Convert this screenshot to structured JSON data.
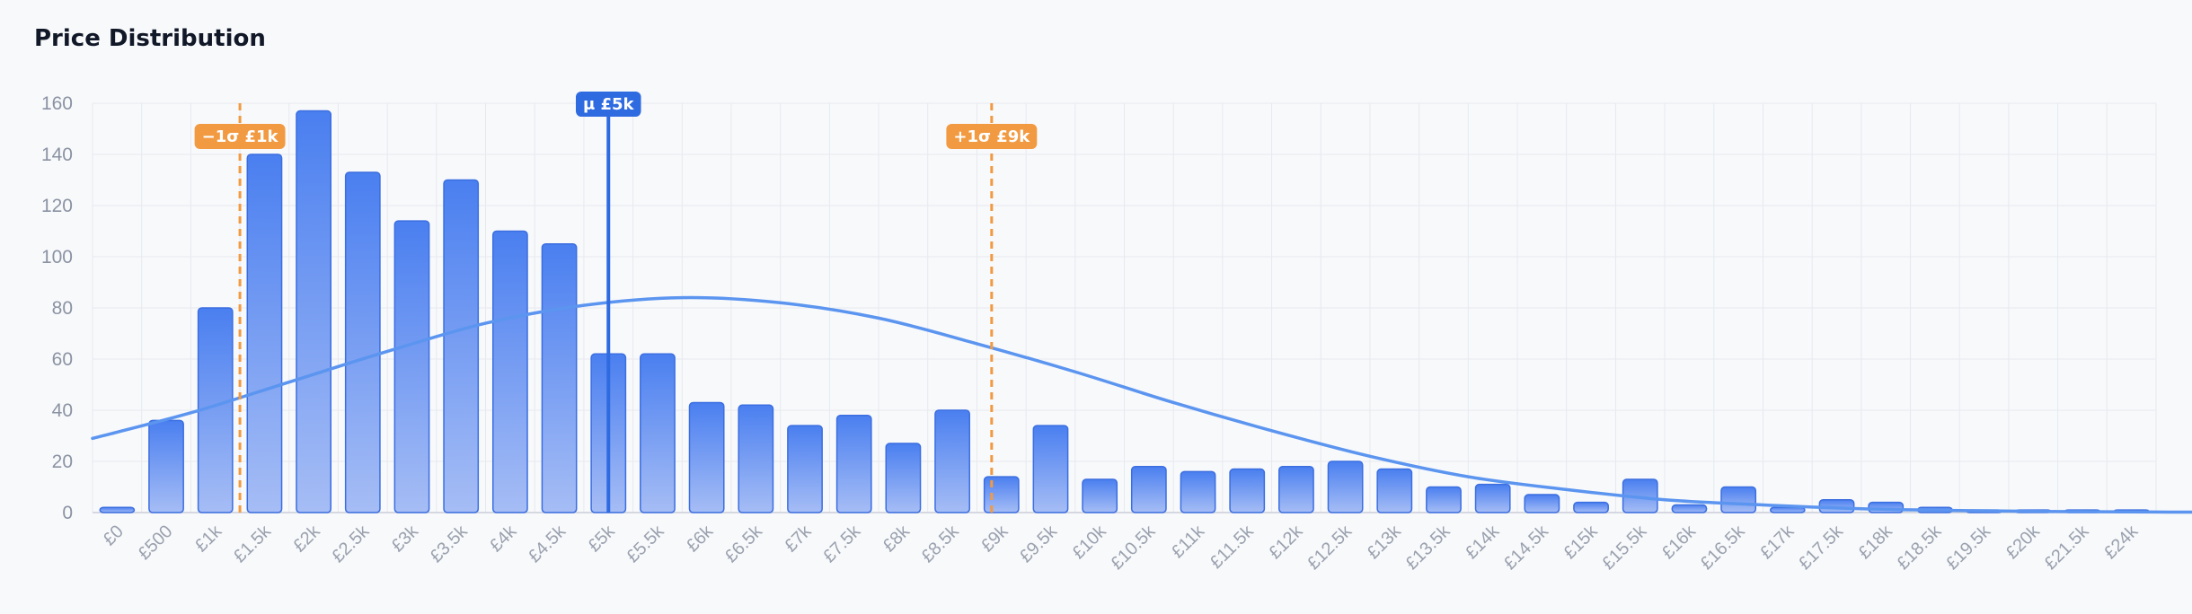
{
  "chart_data": {
    "type": "bar",
    "title": "Price Distribution",
    "xlabel": "",
    "ylabel": "",
    "ylim": [
      0,
      160
    ],
    "yticks": [
      0,
      20,
      40,
      60,
      80,
      100,
      120,
      140,
      160
    ],
    "grid": true,
    "categories": [
      "£0",
      "£500",
      "£1k",
      "£1.5k",
      "£2k",
      "£2.5k",
      "£3k",
      "£3.5k",
      "£4k",
      "£4.5k",
      "£5k",
      "£5.5k",
      "£6k",
      "£6.5k",
      "£7k",
      "£7.5k",
      "£8k",
      "£8.5k",
      "£9k",
      "£9.5k",
      "£10k",
      "£10.5k",
      "£11k",
      "£11.5k",
      "£12k",
      "£12.5k",
      "£13k",
      "£13.5k",
      "£14k",
      "£14.5k",
      "£15k",
      "£15.5k",
      "£16k",
      "£16.5k",
      "£17k",
      "£17.5k",
      "£18k",
      "£18.5k",
      "£19.5k",
      "£20k",
      "£21.5k",
      "£24k"
    ],
    "tick_labels": [
      "£0",
      "£500",
      "£1k",
      "£1.5k",
      "£2k",
      "£2.5k",
      "£3k",
      "£3.5k",
      "£4k",
      "£4.5k",
      "£5k",
      "£5.5k",
      "£6k",
      "£6.5k",
      "£7k",
      "£7.5k",
      "£8k",
      "£8.5k",
      "£9k",
      "£9.5k",
      "£10k",
      "£10.5k",
      "£11k",
      "£11.5k",
      "£12k",
      "£12.5k",
      "£13k",
      "£13.5k",
      "£14k",
      "£14.5k",
      "£15k",
      "£15.5k",
      "£16k",
      "£16.5k",
      "£17k",
      "£17.5k",
      "£18k",
      "£18.5k",
      "£19.5k",
      "£20k",
      "£21.5k",
      "£24k"
    ],
    "values": [
      2,
      36,
      80,
      140,
      157,
      133,
      114,
      130,
      110,
      105,
      62,
      62,
      43,
      42,
      34,
      38,
      27,
      40,
      14,
      34,
      13,
      18,
      16,
      17,
      18,
      20,
      17,
      10,
      11,
      7,
      4,
      13,
      3,
      10,
      2,
      5,
      4,
      2,
      1,
      1,
      1,
      1
    ],
    "normal_curve": {
      "x": [
        0,
        2,
        4,
        6,
        8,
        10,
        12,
        14,
        16,
        18,
        20,
        22,
        24,
        26,
        28,
        30,
        32,
        34,
        36,
        38,
        40,
        42,
        44
      ],
      "y": [
        29,
        39,
        51,
        63,
        74,
        81,
        84,
        82,
        76,
        66,
        55,
        43,
        32,
        22,
        14,
        9,
        5,
        3,
        1.5,
        0.8,
        0.4,
        0.2,
        0.1
      ]
    },
    "mean": {
      "label": "μ £5k",
      "x": 10.5
    },
    "sigma_lines": [
      {
        "label": "−1σ £1k",
        "x": 3
      },
      {
        "label": "+1σ £9k",
        "x": 18.3
      }
    ],
    "colors": {
      "bar_top": "#4a7ff0",
      "bar_bottom": "#a6bdf5",
      "bar_stroke": "#3b6ee0",
      "curve": "#5b95f0",
      "mean": "#2f6be0",
      "sigma": "#f29a42",
      "grid": "#e6e9ef"
    }
  }
}
